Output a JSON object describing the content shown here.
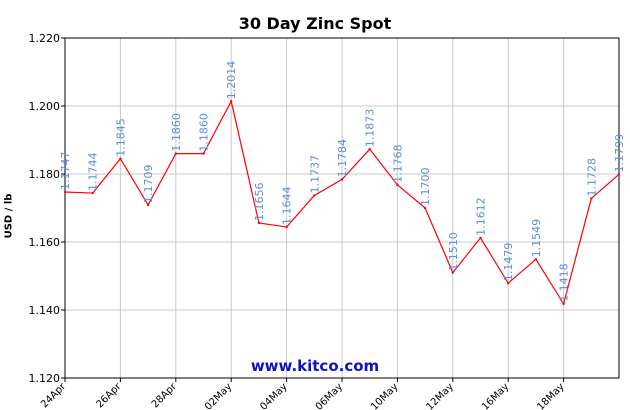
{
  "chart_data": {
    "type": "line",
    "title": "30 Day Zinc Spot",
    "ylabel": "USD / lb",
    "xlabel": "",
    "watermark": "www.kitco.com",
    "ylim": [
      1.12,
      1.22
    ],
    "yticks": [
      "1.120",
      "1.140",
      "1.160",
      "1.180",
      "1.200",
      "1.220"
    ],
    "xticks": [
      {
        "label": "24Apr",
        "index": 0
      },
      {
        "label": "26Apr",
        "index": 2
      },
      {
        "label": "28Apr",
        "index": 4
      },
      {
        "label": "02May",
        "index": 6
      },
      {
        "label": "04May",
        "index": 8
      },
      {
        "label": "06May",
        "index": 10
      },
      {
        "label": "10May",
        "index": 12
      },
      {
        "label": "12May",
        "index": 14
      },
      {
        "label": "16May",
        "index": 16
      },
      {
        "label": "18May",
        "index": 18
      }
    ],
    "series": [
      {
        "color": "#ff0000",
        "label_color": "#5b8fd6",
        "values": [
          1.1747,
          1.1744,
          1.1845,
          1.1709,
          1.186,
          1.186,
          1.2014,
          1.1656,
          1.1644,
          1.1737,
          1.1784,
          1.1873,
          1.1768,
          1.17,
          1.151,
          1.1612,
          1.1479,
          1.1549,
          1.1418,
          1.1728,
          1.1799
        ],
        "labels": [
          "1.1747",
          "1.1744",
          "1.1845",
          "1.1709",
          "1.1860",
          "1.1860",
          "1.2014",
          "1.1656",
          "1.1644",
          "1.1737",
          "1.1784",
          "1.1873",
          "1.1768",
          "1.1700",
          "1.1510",
          "1.1612",
          "1.1479",
          "1.1549",
          "1.1418",
          "1.1728",
          "1.1799"
        ]
      }
    ],
    "grid": true
  }
}
